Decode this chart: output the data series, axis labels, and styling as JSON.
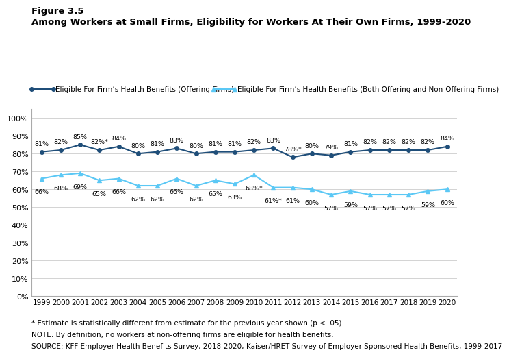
{
  "years": [
    1999,
    2000,
    2001,
    2002,
    2003,
    2004,
    2005,
    2006,
    2007,
    2008,
    2009,
    2010,
    2011,
    2012,
    2013,
    2014,
    2015,
    2016,
    2017,
    2018,
    2019,
    2020
  ],
  "series1_values": [
    81,
    82,
    85,
    82,
    84,
    80,
    81,
    83,
    80,
    81,
    81,
    82,
    83,
    78,
    80,
    79,
    81,
    82,
    82,
    82,
    82,
    84
  ],
  "series1_labels": [
    "81%",
    "82%",
    "85%",
    "82%*",
    "84%",
    "80%",
    "81%",
    "83%",
    "80%",
    "81%",
    "81%",
    "82%",
    "83%",
    "78%*",
    "80%",
    "79%",
    "81%",
    "82%",
    "82%",
    "82%",
    "82%",
    "84%"
  ],
  "series2_values": [
    66,
    68,
    69,
    65,
    66,
    62,
    62,
    66,
    62,
    65,
    63,
    68,
    61,
    61,
    60,
    57,
    59,
    57,
    57,
    57,
    59,
    60
  ],
  "series2_labels": [
    "66%",
    "68%",
    "69%",
    "65%",
    "66%",
    "62%",
    "62%",
    "66%",
    "62%",
    "65%",
    "63%",
    "68%*",
    "61%*",
    "61%",
    "60%",
    "57%",
    "59%",
    "57%",
    "57%",
    "57%",
    "59%",
    "60%"
  ],
  "series1_color": "#1f4e79",
  "series2_color": "#5bc8f5",
  "series1_name": "Eligible For Firm’s Health Benefits (Offering Firms)",
  "series2_name": "Eligible For Firm’s Health Benefits (Both Offering and Non-Offering Firms)",
  "figure_label": "Figure 3.5",
  "title": "Among Workers at Small Firms, Eligibility for Workers At Their Own Firms, 1999-2020",
  "ylim": [
    0,
    105
  ],
  "yticks": [
    0,
    10,
    20,
    30,
    40,
    50,
    60,
    70,
    80,
    90,
    100
  ],
  "ytick_labels": [
    "0%",
    "10%",
    "20%",
    "30%",
    "40%",
    "50%",
    "60%",
    "70%",
    "80%",
    "90%",
    "100%"
  ],
  "footnote1": "* Estimate is statistically different from estimate for the previous year shown (p < .05).",
  "footnote2": "NOTE: By definition, no workers at non-offering firms are eligible for health benefits.",
  "footnote3": "SOURCE: KFF Employer Health Benefits Survey, 2018-2020; Kaiser/HRET Survey of Employer-Sponsored Health Benefits, 1999-2017",
  "background_color": "#ffffff",
  "label_fontsize": 6.8,
  "marker_size": 4,
  "line_width": 1.5
}
